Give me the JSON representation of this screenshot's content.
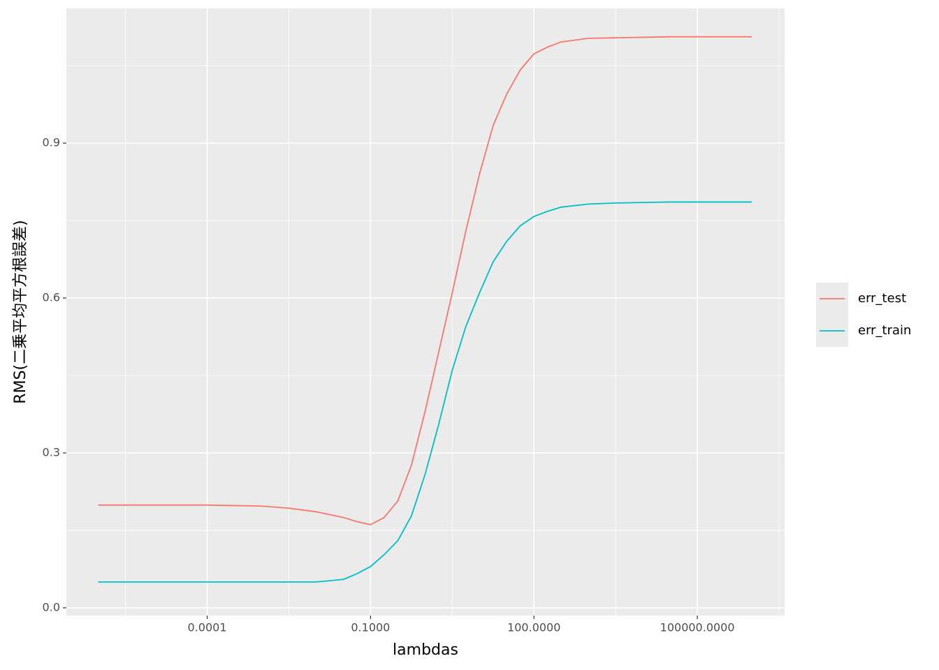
{
  "chart_data": {
    "type": "line",
    "x_label": "lambdas",
    "y_label": "RMS(二乗平均平方根誤差)",
    "x_log": true,
    "x": [
      1e-06,
      3.16e-06,
      1e-05,
      3.16e-05,
      0.0001,
      0.000316,
      0.001,
      0.00316,
      0.01,
      0.0316,
      0.0562,
      0.1,
      0.178,
      0.316,
      0.562,
      1,
      1.78,
      3.16,
      5.62,
      10,
      17.8,
      31.6,
      56.2,
      100,
      178,
      316,
      1000,
      3160,
      10000,
      31600,
      100000,
      316000,
      1000000
    ],
    "series": [
      {
        "name": "err_test",
        "color": "#F8766D",
        "values": [
          0.199,
          0.199,
          0.199,
          0.199,
          0.199,
          0.198,
          0.197,
          0.193,
          0.186,
          0.175,
          0.167,
          0.161,
          0.175,
          0.207,
          0.276,
          0.38,
          0.495,
          0.61,
          0.73,
          0.84,
          0.934,
          0.995,
          1.042,
          1.073,
          1.086,
          1.096,
          1.103,
          1.104,
          1.105,
          1.106,
          1.106,
          1.106,
          1.106
        ]
      },
      {
        "name": "err_train",
        "color": "#00BFC4",
        "values": [
          0.05,
          0.05,
          0.05,
          0.05,
          0.05,
          0.05,
          0.05,
          0.05,
          0.05,
          0.055,
          0.066,
          0.08,
          0.103,
          0.13,
          0.178,
          0.258,
          0.355,
          0.46,
          0.545,
          0.61,
          0.67,
          0.71,
          0.74,
          0.758,
          0.768,
          0.776,
          0.782,
          0.784,
          0.785,
          0.786,
          0.786,
          0.786,
          0.786
        ]
      }
    ],
    "xlim": [
      2.6e-07,
      4000000
    ],
    "xticks": [
      {
        "value": 0.0001,
        "label": "0.0001"
      },
      {
        "value": 0.1,
        "label": "0.1000"
      },
      {
        "value": 100,
        "label": "100.0000"
      },
      {
        "value": 100000,
        "label": "100000.0000"
      }
    ],
    "xminorticks": [
      3.16e-06,
      0.00316,
      3.16,
      3160,
      3160000
    ],
    "ylim": [
      -0.015,
      1.161
    ],
    "yticks": [
      {
        "value": 0,
        "label": "0.0"
      },
      0.3,
      0.6,
      0.9
    ],
    "yminorticks": [
      0.15,
      0.45,
      0.75,
      1.05
    ],
    "grid": true,
    "legend": "right"
  }
}
